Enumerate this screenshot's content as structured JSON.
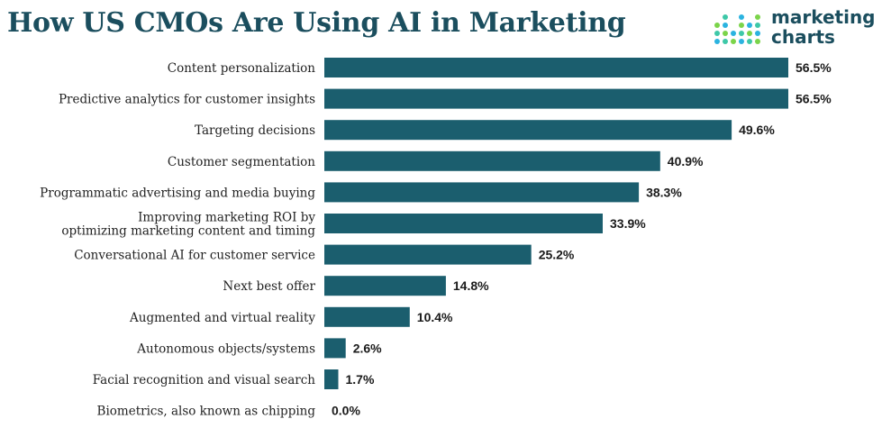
{
  "title": "How US CMOs Are Using AI in Marketing",
  "logo": {
    "line1": "marketing",
    "line2": "charts",
    "dot_colors": [
      "#2bb3e0",
      "#3ec8a8",
      "#7bd44a"
    ]
  },
  "colors": {
    "bar": "#1b5e6e",
    "text": "#222222"
  },
  "chart_data": {
    "type": "bar",
    "orientation": "horizontal",
    "title": "How US CMOs Are Using AI in Marketing",
    "categories": [
      "Content personalization",
      "Predictive analytics for customer insights",
      "Targeting decisions",
      "Customer segmentation",
      "Programmatic advertising and media buying",
      "Improving marketing ROI by optimizing marketing content and timing",
      "Conversational AI for customer service",
      "Next best offer",
      "Augmented and virtual reality",
      "Autonomous objects/systems",
      "Facial recognition and visual search",
      "Biometrics, also known as chipping"
    ],
    "category_lines": [
      [
        "Content personalization"
      ],
      [
        "Predictive analytics for customer insights"
      ],
      [
        "Targeting decisions"
      ],
      [
        "Customer segmentation"
      ],
      [
        "Programmatic advertising and media buying"
      ],
      [
        "Improving marketing ROI by",
        "optimizing marketing content and timing"
      ],
      [
        "Conversational AI for customer service"
      ],
      [
        "Next best offer"
      ],
      [
        "Augmented and virtual reality"
      ],
      [
        "Autonomous objects/systems"
      ],
      [
        "Facial recognition and visual search"
      ],
      [
        "Biometrics, also known as chipping"
      ]
    ],
    "values": [
      56.5,
      56.5,
      49.6,
      40.9,
      38.3,
      33.9,
      25.2,
      14.8,
      10.4,
      2.6,
      1.7,
      0.0
    ],
    "value_labels": [
      "56.5%",
      "56.5%",
      "49.6%",
      "40.9%",
      "38.3%",
      "33.9%",
      "25.2%",
      "14.8%",
      "10.4%",
      "2.6%",
      "1.7%",
      "0.0%"
    ],
    "unit": "%",
    "xlim": [
      0,
      56.5
    ],
    "grid": false,
    "legend": "none"
  }
}
